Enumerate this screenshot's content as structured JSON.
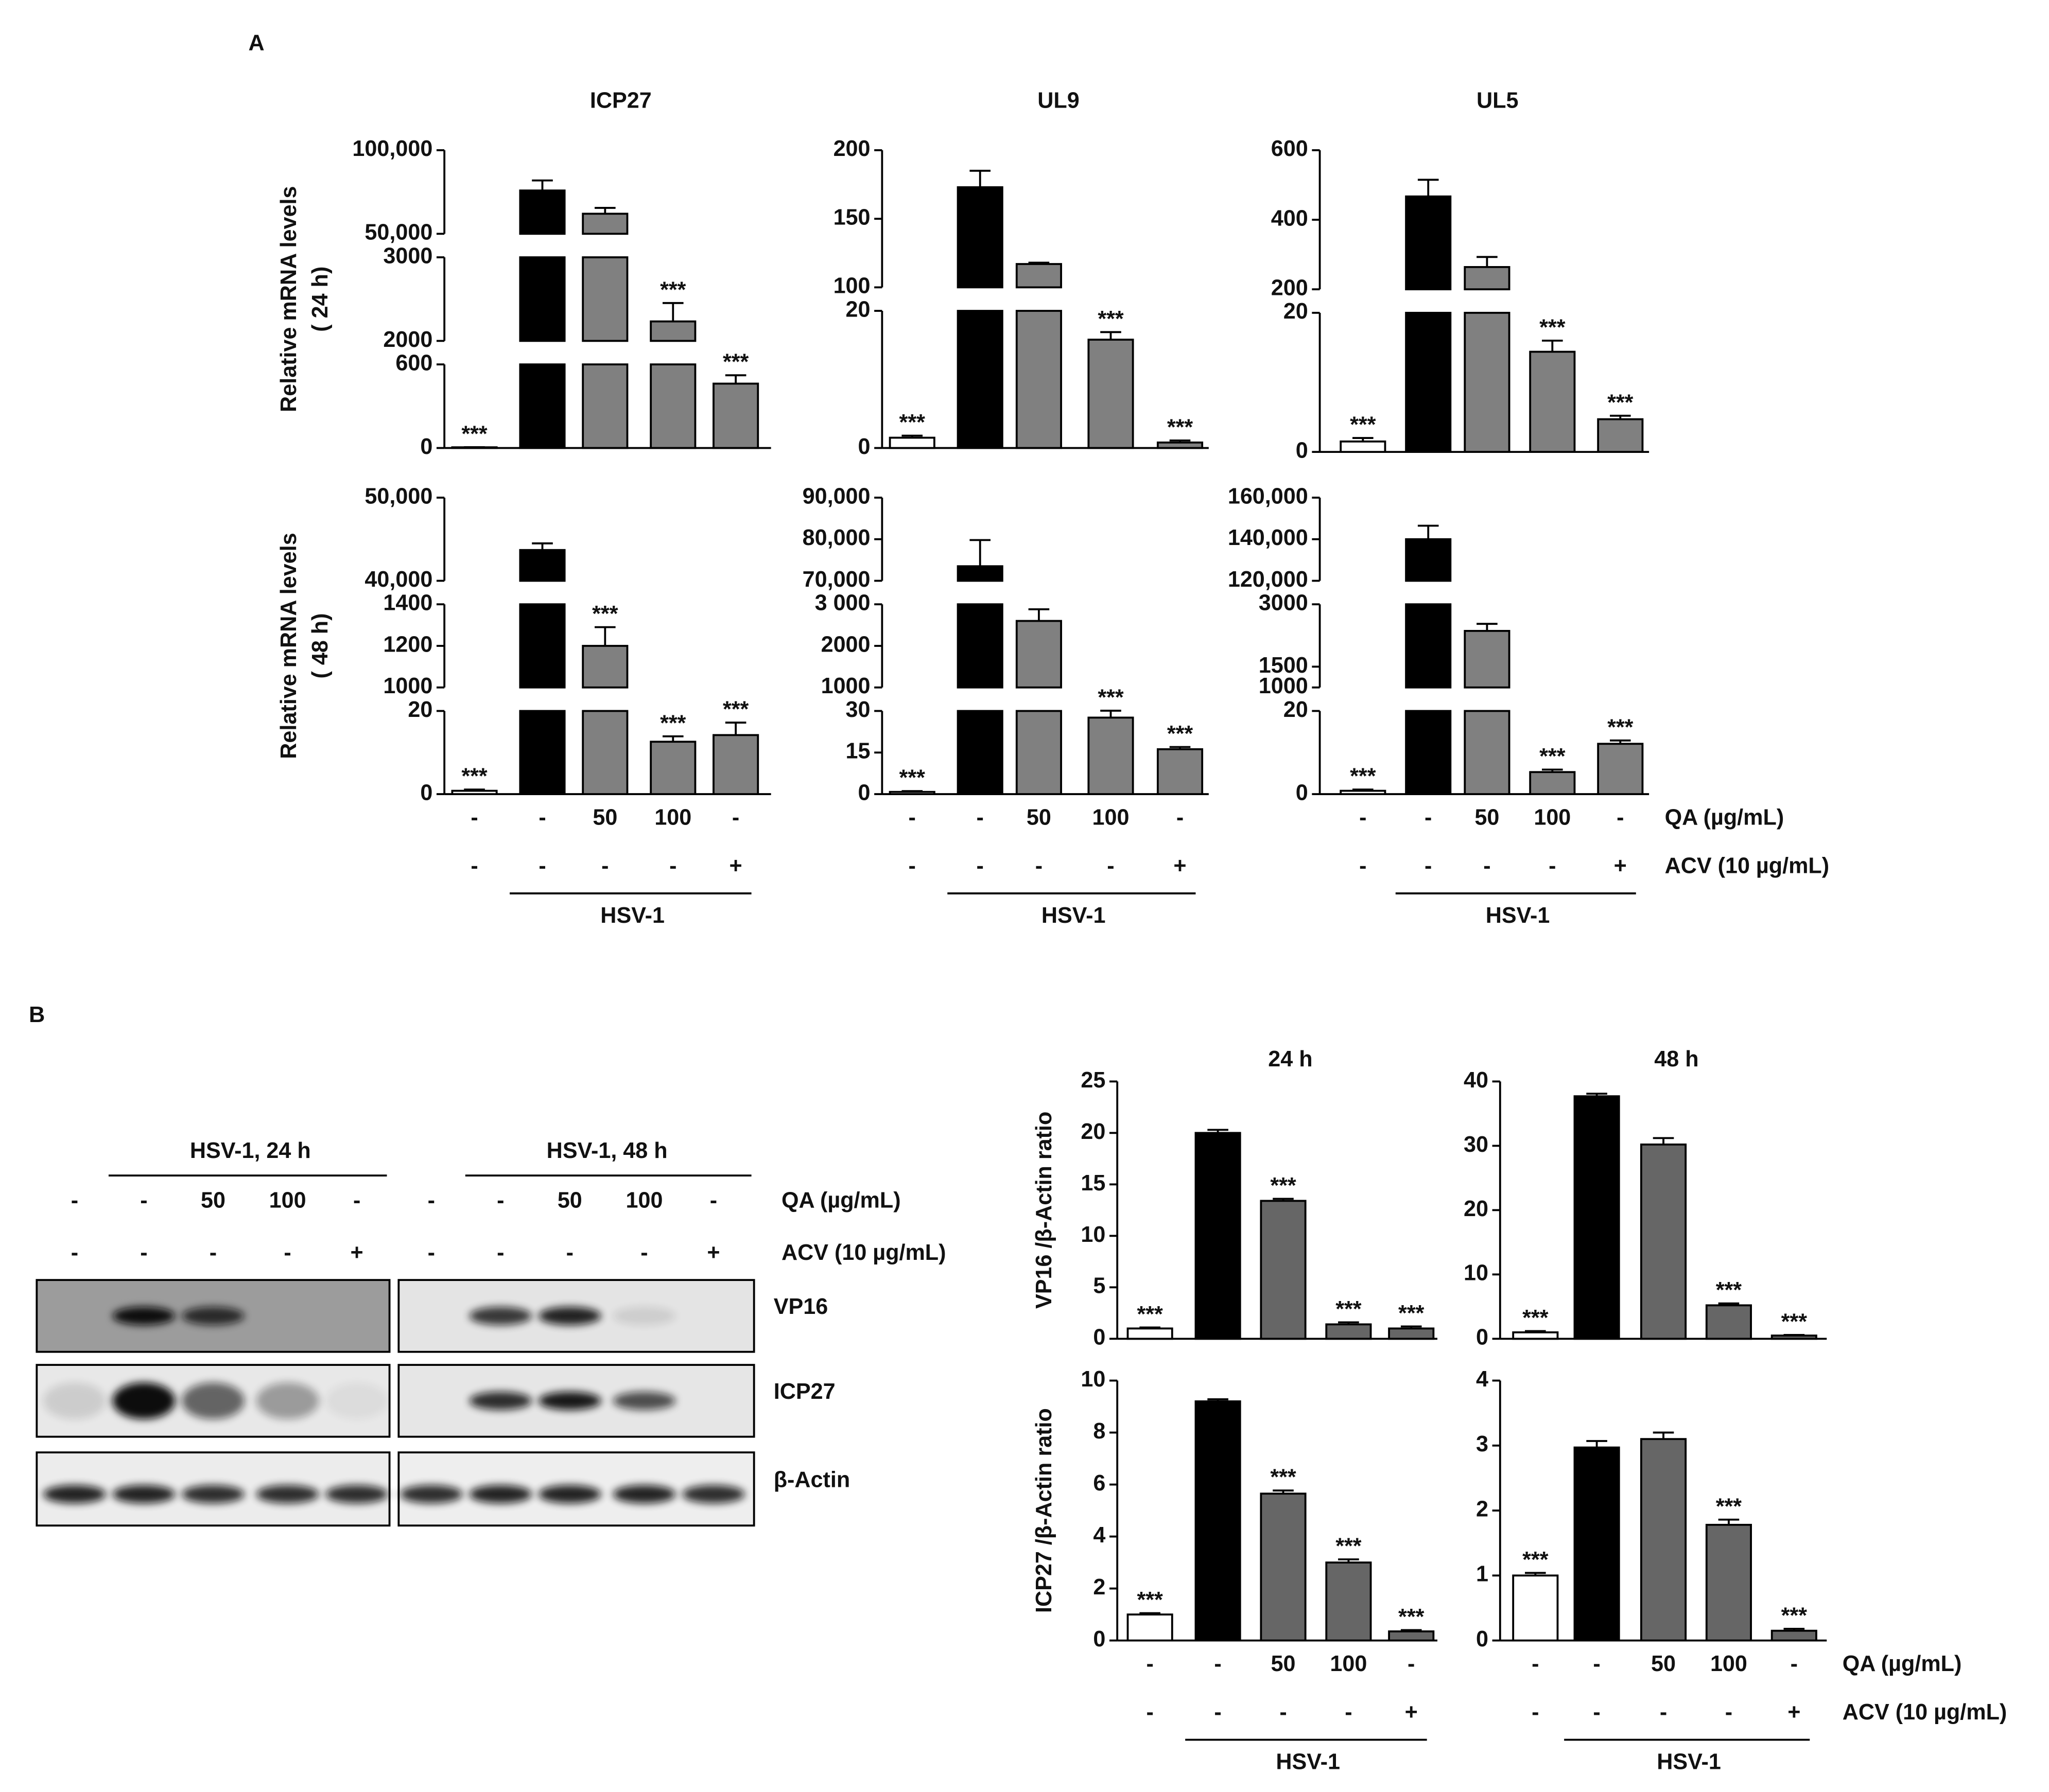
{
  "panel_labels": [
    "A",
    "B"
  ],
  "chart_data": [
    {
      "type": "bar",
      "title": "ICP27",
      "ylabel": [
        "Relative mRNA levels",
        "( 24 h)"
      ],
      "segments": [
        {
          "ylim": [
            0,
            600
          ],
          "yticks": [
            0,
            600
          ]
        },
        {
          "ylim": [
            2000,
            3000
          ],
          "yticks": [
            2000,
            3000
          ]
        },
        {
          "ylim": [
            50000,
            100000
          ],
          "yticks": [
            {
              "value": 50000,
              "label": "50,000"
            },
            {
              "value": 100000,
              "label": "100,000"
            }
          ]
        }
      ],
      "values": [
        5,
        75900,
        62000,
        2233,
        462
      ],
      "errors": [
        1,
        6000,
        3500,
        220,
        60
      ],
      "annotations": [
        "***",
        null,
        null,
        "***",
        "***"
      ],
      "colors": [
        "#ffffff",
        "#000000",
        "#808080",
        "#808080",
        "#808080"
      ]
    },
    {
      "type": "bar",
      "title": "UL9",
      "segments": [
        {
          "ylim": [
            0,
            20
          ],
          "yticks": [
            0,
            20
          ]
        },
        {
          "ylim": [
            100,
            200
          ],
          "yticks": [
            100,
            150,
            200
          ]
        }
      ],
      "values": [
        1.5,
        173,
        117,
        15.8,
        0.8
      ],
      "errors": [
        0.3,
        12,
        1,
        1.1,
        0.3
      ],
      "annotations": [
        "***",
        null,
        null,
        "***",
        "***"
      ],
      "colors": [
        "#ffffff",
        "#000000",
        "#808080",
        "#808080",
        "#808080"
      ]
    },
    {
      "type": "bar",
      "title": "UL5",
      "segments": [
        {
          "ylim": [
            0,
            20
          ],
          "yticks": [
            0,
            20
          ]
        },
        {
          "ylim": [
            200,
            600
          ],
          "yticks": [
            200,
            400,
            600
          ]
        }
      ],
      "values": [
        1.5,
        467,
        264,
        14.4,
        4.7
      ],
      "errors": [
        0.5,
        48,
        29,
        1.6,
        0.5
      ],
      "annotations": [
        "***",
        null,
        null,
        "***",
        "***"
      ],
      "colors": [
        "#ffffff",
        "#000000",
        "#808080",
        "#808080",
        "#808080"
      ]
    },
    {
      "type": "bar",
      "ylabel": [
        "Relative mRNA levels",
        "( 48 h)"
      ],
      "segments": [
        {
          "ylim": [
            0,
            20
          ],
          "yticks": [
            0,
            20
          ]
        },
        {
          "ylim": [
            1000,
            1400
          ],
          "yticks": [
            1000,
            1200,
            1400
          ]
        },
        {
          "ylim": [
            40000,
            50000
          ],
          "yticks": [
            {
              "value": 40000,
              "label": "40,000"
            },
            {
              "value": 50000,
              "label": "50,000"
            }
          ]
        }
      ],
      "values": [
        0.8,
        43700,
        1200,
        12.6,
        14.2
      ],
      "errors": [
        0.3,
        800,
        90,
        1.3,
        3
      ],
      "annotations": [
        "***",
        null,
        "***",
        "***",
        "***"
      ],
      "colors": [
        "#ffffff",
        "#000000",
        "#808080",
        "#808080",
        "#808080"
      ],
      "categories": [
        "-",
        "-",
        "50",
        "100",
        "-"
      ],
      "categories2": [
        "-",
        "-",
        "-",
        "-",
        "+"
      ],
      "group_label": "HSV-1"
    },
    {
      "type": "bar",
      "segments": [
        {
          "ylim": [
            0,
            30
          ],
          "yticks": [
            0,
            15,
            30
          ]
        },
        {
          "ylim": [
            1000,
            3000
          ],
          "yticks": [
            1000,
            2000,
            {
              "value": 3000,
              "label": "3 000"
            }
          ]
        },
        {
          "ylim": [
            70000,
            90000
          ],
          "yticks": [
            {
              "value": 70000,
              "label": "70,000"
            },
            {
              "value": 80000,
              "label": "80,000"
            },
            {
              "value": 90000,
              "label": "90,000"
            }
          ]
        }
      ],
      "values": [
        0.8,
        73500,
        2600,
        27.6,
        16.2
      ],
      "errors": [
        0.3,
        6300,
        280,
        2.5,
        0.8
      ],
      "annotations": [
        "***",
        null,
        null,
        "***",
        "***"
      ],
      "colors": [
        "#ffffff",
        "#000000",
        "#808080",
        "#808080",
        "#808080"
      ],
      "categories": [
        "-",
        "-",
        "50",
        "100",
        "-"
      ],
      "categories2": [
        "-",
        "-",
        "-",
        "-",
        "+"
      ],
      "group_label": "HSV-1"
    },
    {
      "type": "bar",
      "segments": [
        {
          "ylim": [
            0,
            20
          ],
          "yticks": [
            0,
            20
          ]
        },
        {
          "ylim": [
            1000,
            3000
          ],
          "yticks": [
            1000,
            1500,
            3000
          ]
        },
        {
          "ylim": [
            120000,
            160000
          ],
          "yticks": [
            {
              "value": 120000,
              "label": "120,000"
            },
            {
              "value": 140000,
              "label": "140,000"
            },
            {
              "value": 160000,
              "label": "160,000"
            }
          ]
        }
      ],
      "values": [
        0.8,
        140000,
        2360,
        5.3,
        12.1
      ],
      "errors": [
        0.3,
        6500,
        170,
        0.6,
        0.8
      ],
      "annotations": [
        "***",
        null,
        null,
        "***",
        "***"
      ],
      "colors": [
        "#ffffff",
        "#000000",
        "#808080",
        "#808080",
        "#808080"
      ],
      "categories": [
        "-",
        "-",
        "50",
        "100",
        "-"
      ],
      "categories2": [
        "-",
        "-",
        "-",
        "-",
        "+"
      ],
      "group_label": "HSV-1",
      "row_labels": [
        "QA (µg/mL)",
        "ACV (10 µg/mL)"
      ]
    },
    {
      "type": "bar",
      "title": "24 h",
      "ylabel": [
        "VP16 /β-Actin ratio"
      ],
      "ylim": [
        0,
        25
      ],
      "yticks": [
        0,
        5,
        10,
        15,
        20,
        25
      ],
      "values": [
        1,
        20,
        13.4,
        1.4,
        1.0
      ],
      "errors": [
        0.1,
        0.3,
        0.2,
        0.2,
        0.2
      ],
      "annotations": [
        "***",
        null,
        "***",
        "***",
        "***"
      ],
      "colors": [
        "#ffffff",
        "#000000",
        "#666666",
        "#666666",
        "#666666"
      ]
    },
    {
      "type": "bar",
      "title": "48 h",
      "ylim": [
        0,
        40
      ],
      "yticks": [
        0,
        10,
        20,
        30,
        40
      ],
      "values": [
        1,
        37.7,
        30.2,
        5.2,
        0.5
      ],
      "errors": [
        0.2,
        0.4,
        1,
        0.3,
        0.1
      ],
      "annotations": [
        "***",
        null,
        null,
        "***",
        "***"
      ],
      "colors": [
        "#ffffff",
        "#000000",
        "#666666",
        "#666666",
        "#666666"
      ]
    },
    {
      "type": "bar",
      "ylabel": [
        "ICP27 /β-Actin ratio"
      ],
      "ylim": [
        0,
        10
      ],
      "yticks": [
        0,
        2,
        4,
        6,
        8,
        10
      ],
      "values": [
        1,
        9.2,
        5.65,
        3.0,
        0.35
      ],
      "errors": [
        0.05,
        0.08,
        0.12,
        0.12,
        0.05
      ],
      "annotations": [
        "***",
        null,
        "***",
        "***",
        "***"
      ],
      "colors": [
        "#ffffff",
        "#000000",
        "#666666",
        "#666666",
        "#666666"
      ],
      "categories": [
        "-",
        "-",
        "50",
        "100",
        "-"
      ],
      "categories2": [
        "-",
        "-",
        "-",
        "-",
        "+"
      ],
      "group_label": "HSV-1"
    },
    {
      "type": "bar",
      "ylim": [
        0,
        4
      ],
      "yticks": [
        0,
        1,
        2,
        3,
        4
      ],
      "values": [
        1,
        2.97,
        3.1,
        1.78,
        0.15
      ],
      "errors": [
        0.04,
        0.1,
        0.1,
        0.08,
        0.03
      ],
      "annotations": [
        "***",
        null,
        null,
        "***",
        "***"
      ],
      "colors": [
        "#ffffff",
        "#000000",
        "#666666",
        "#666666",
        "#666666"
      ],
      "categories": [
        "-",
        "-",
        "50",
        "100",
        "-"
      ],
      "categories2": [
        "-",
        "-",
        "-",
        "-",
        "+"
      ],
      "group_label": "HSV-1",
      "row_labels": [
        "QA (µg/mL)",
        "ACV (10 µg/mL)"
      ]
    }
  ],
  "western_blot": {
    "groups": [
      "HSV-1, 24 h",
      "HSV-1, 48 h"
    ],
    "qa": [
      "-",
      "-",
      "50",
      "100",
      "-"
    ],
    "acv": [
      "-",
      "-",
      "-",
      "-",
      "+"
    ],
    "row_labels": [
      "QA (µg/mL)",
      "ACV (10 µg/mL)"
    ],
    "proteins": [
      "VP16",
      "ICP27",
      "β-Actin"
    ]
  }
}
